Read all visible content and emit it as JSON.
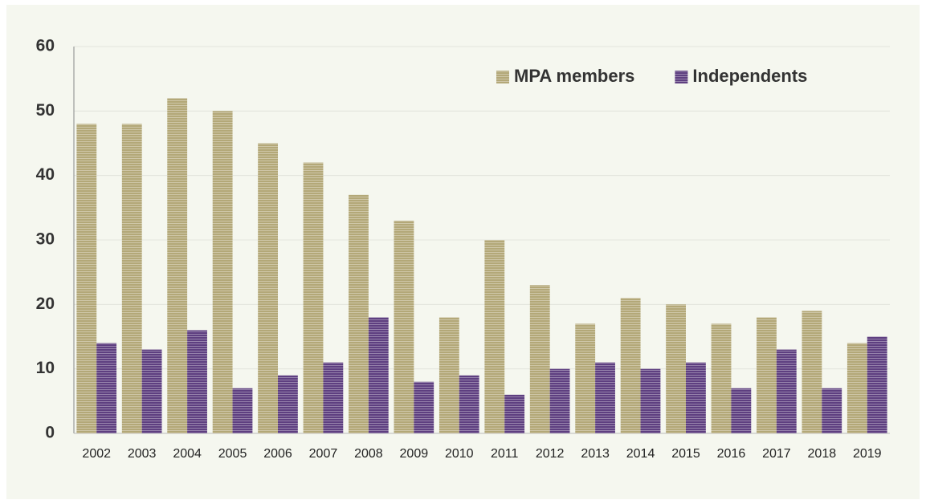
{
  "chart_data": {
    "type": "bar",
    "categories": [
      "2002",
      "2003",
      "2004",
      "2005",
      "2006",
      "2007",
      "2008",
      "2009",
      "2010",
      "2011",
      "2012",
      "2013",
      "2014",
      "2015",
      "2016",
      "2017",
      "2018",
      "2019"
    ],
    "series": [
      {
        "name": "MPA members",
        "color": "#b3a878",
        "values": [
          48,
          48,
          52,
          50,
          45,
          42,
          37,
          33,
          18,
          30,
          23,
          17,
          21,
          20,
          17,
          18,
          19,
          14
        ]
      },
      {
        "name": "Independents",
        "color": "#5e3f80",
        "values": [
          14,
          13,
          16,
          7,
          9,
          11,
          18,
          8,
          9,
          6,
          10,
          11,
          10,
          11,
          7,
          13,
          7,
          15
        ]
      }
    ],
    "ylim": [
      0,
      60
    ],
    "yticks": [
      0,
      10,
      20,
      30,
      40,
      50,
      60
    ],
    "grid": true,
    "legend": "upper right"
  }
}
